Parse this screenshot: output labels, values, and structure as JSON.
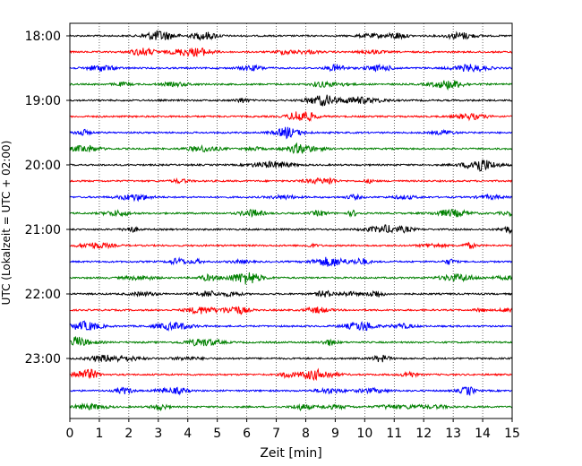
{
  "chart_data": {
    "type": "line",
    "title": "",
    "xlabel": "Zeit  [min]",
    "ylabel": "UTC (Lokalzeit = UTC + 02:00)",
    "xlim": [
      0,
      15
    ],
    "x_ticks": [
      0,
      1,
      2,
      3,
      4,
      5,
      6,
      7,
      8,
      9,
      10,
      11,
      12,
      13,
      14,
      15
    ],
    "x_tick_labels": [
      "0",
      "1",
      "2",
      "3",
      "4",
      "5",
      "6",
      "7",
      "8",
      "9",
      "10",
      "11",
      "12",
      "13",
      "14",
      "15"
    ],
    "y_tick_labels": [
      "18:00",
      "19:00",
      "20:00",
      "21:00",
      "22:00",
      "23:00"
    ],
    "y_tick_times": [
      "18:00",
      "19:00",
      "20:00",
      "21:00",
      "22:00",
      "23:00"
    ],
    "grid": "vertical dotted at each minute",
    "colors": [
      "#000000",
      "#ff0000",
      "#0000ff",
      "#008000"
    ],
    "trace_interval_min": 15,
    "traces": [
      {
        "start": "18:00",
        "color": "#000000"
      },
      {
        "start": "18:15",
        "color": "#ff0000"
      },
      {
        "start": "18:30",
        "color": "#0000ff"
      },
      {
        "start": "18:45",
        "color": "#008000"
      },
      {
        "start": "19:00",
        "color": "#000000"
      },
      {
        "start": "19:15",
        "color": "#ff0000"
      },
      {
        "start": "19:30",
        "color": "#0000ff"
      },
      {
        "start": "19:45",
        "color": "#008000"
      },
      {
        "start": "20:00",
        "color": "#000000"
      },
      {
        "start": "20:15",
        "color": "#ff0000"
      },
      {
        "start": "20:30",
        "color": "#0000ff"
      },
      {
        "start": "20:45",
        "color": "#008000"
      },
      {
        "start": "21:00",
        "color": "#000000"
      },
      {
        "start": "21:15",
        "color": "#ff0000"
      },
      {
        "start": "21:30",
        "color": "#0000ff"
      },
      {
        "start": "21:45",
        "color": "#008000"
      },
      {
        "start": "22:00",
        "color": "#000000"
      },
      {
        "start": "22:15",
        "color": "#ff0000"
      },
      {
        "start": "22:30",
        "color": "#0000ff"
      },
      {
        "start": "22:45",
        "color": "#008000"
      },
      {
        "start": "23:00",
        "color": "#000000"
      },
      {
        "start": "23:15",
        "color": "#ff0000"
      },
      {
        "start": "23:30",
        "color": "#0000ff"
      },
      {
        "start": "23:45",
        "color": "#008000"
      }
    ]
  }
}
